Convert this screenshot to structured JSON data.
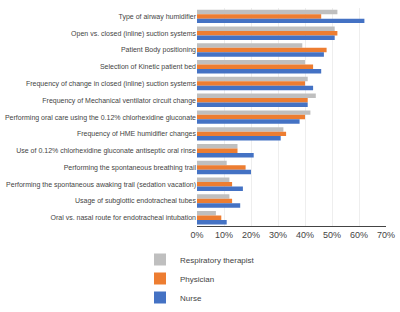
{
  "chart_data": {
    "type": "bar",
    "orientation": "horizontal",
    "categories": [
      "Type of airway humidifier",
      "Open vs. closed (inline) suction systems",
      "Patient Body positioning",
      "Selection of Kinetic patient bed",
      "Frequency of change in closed (inline) suction systems",
      "Frequency of Mechanical ventilator circuit change",
      "Performing oral care using the 0.12% chlorhexidine gluconate",
      "Frequency of HME humidifier changes",
      "Use of 0.12% chlorhexidine gluconate antiseptic oral rinse",
      "Performing the spontaneous breathing trail",
      "Performing the spontaneous awaking trail (sedation vacation)",
      "Usage of subglottic endotracheal tubes",
      "Oral vs. nasal route for endotracheal intubation"
    ],
    "series": [
      {
        "name": "Respiratory therapist",
        "color": "#bfbfbf",
        "values": [
          52,
          51,
          39,
          40,
          41,
          44,
          42,
          32,
          15,
          11,
          12,
          12,
          7
        ]
      },
      {
        "name": "Physician",
        "color": "#ed7d31",
        "values": [
          46,
          52,
          48,
          43,
          40,
          41,
          40,
          33,
          15,
          18,
          13,
          13,
          9
        ]
      },
      {
        "name": "Nurse",
        "color": "#4472c4",
        "values": [
          62,
          51,
          47,
          46,
          43,
          41,
          38,
          31,
          21,
          20,
          17,
          16,
          11
        ]
      }
    ],
    "xlim": [
      0,
      70
    ],
    "xticks": [
      {
        "value": 0,
        "label": "0%"
      },
      {
        "value": 10,
        "label": "10%"
      },
      {
        "value": 20,
        "label": "20%"
      },
      {
        "value": 30,
        "label": "30%"
      },
      {
        "value": 40,
        "label": "40%"
      },
      {
        "value": 50,
        "label": "50%"
      },
      {
        "value": 60,
        "label": "60%"
      },
      {
        "value": 70,
        "label": "70%"
      }
    ],
    "grid": true,
    "legend": "bottom"
  }
}
